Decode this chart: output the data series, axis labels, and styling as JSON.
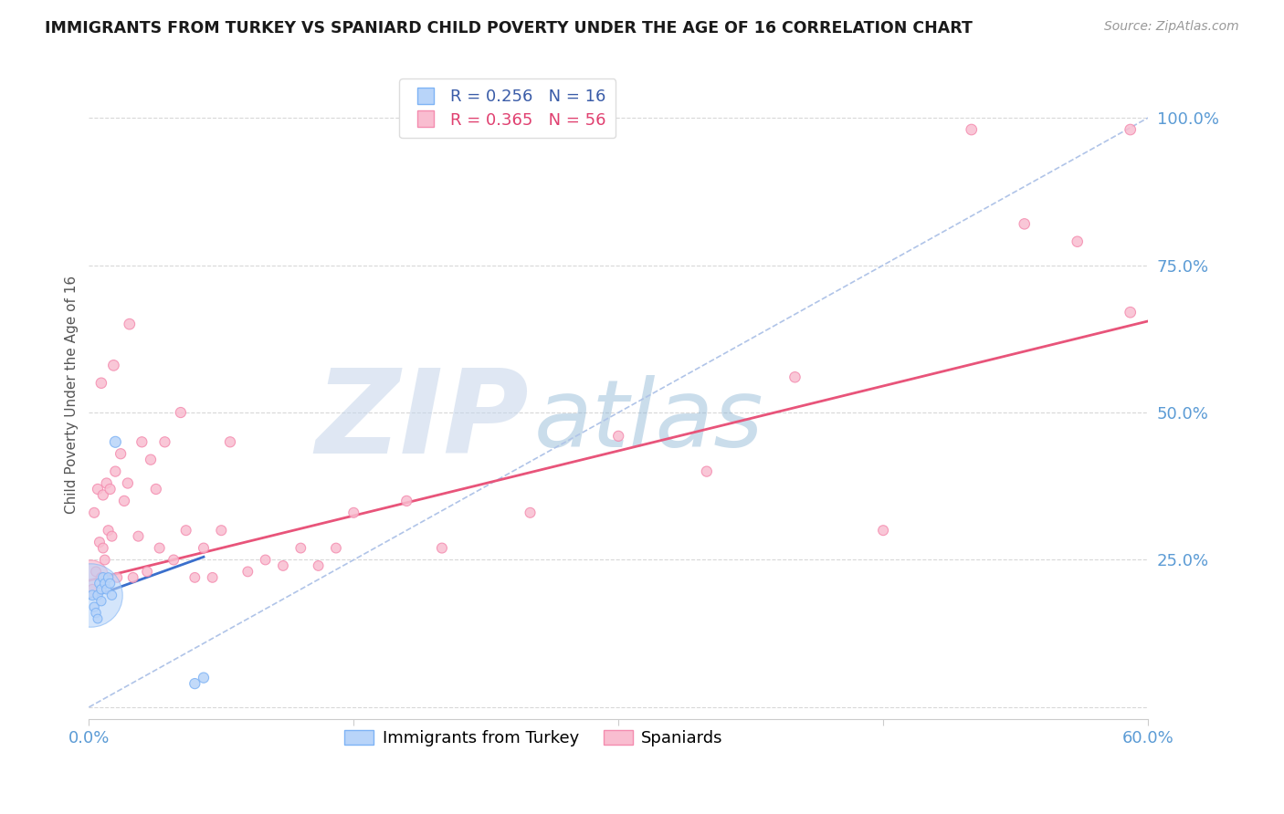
{
  "title": "IMMIGRANTS FROM TURKEY VS SPANIARD CHILD POVERTY UNDER THE AGE OF 16 CORRELATION CHART",
  "source": "Source: ZipAtlas.com",
  "ylabel": "Child Poverty Under the Age of 16",
  "y_ticks": [
    0.0,
    0.25,
    0.5,
    0.75,
    1.0
  ],
  "y_tick_labels_right": [
    "",
    "25.0%",
    "50.0%",
    "75.0%",
    "100.0%"
  ],
  "xlim": [
    0.0,
    0.6
  ],
  "ylim": [
    -0.02,
    1.08
  ],
  "turkey_color": "#7eb3f5",
  "turkey_color_fill": "#b8d4f9",
  "spaniard_color": "#f48caf",
  "spaniard_color_fill": "#f9bdd0",
  "legend_R_turkey": "0.256",
  "legend_N_turkey": "16",
  "legend_R_spaniard": "0.365",
  "legend_N_spaniard": "56",
  "background_color": "#ffffff",
  "grid_color": "#d8d8d8",
  "diag_color": "#b0c4e8",
  "pink_line_color": "#e8547a",
  "blue_line_color": "#3a6fcc",
  "turkey_points_x": [
    0.002,
    0.003,
    0.004,
    0.005,
    0.005,
    0.006,
    0.007,
    0.007,
    0.008,
    0.009,
    0.01,
    0.011,
    0.012,
    0.013,
    0.015,
    0.06,
    0.065
  ],
  "turkey_points_y": [
    0.19,
    0.17,
    0.16,
    0.15,
    0.19,
    0.21,
    0.2,
    0.18,
    0.22,
    0.21,
    0.2,
    0.22,
    0.21,
    0.19,
    0.45,
    0.04,
    0.05
  ],
  "turkey_sizes": [
    60,
    55,
    55,
    50,
    55,
    58,
    55,
    55,
    58,
    55,
    55,
    55,
    55,
    55,
    75,
    65,
    65
  ],
  "turkey_big_x": [
    0.001
  ],
  "turkey_big_y": [
    0.19
  ],
  "turkey_big_size": [
    2500
  ],
  "spaniard_points_x": [
    0.002,
    0.003,
    0.004,
    0.005,
    0.006,
    0.007,
    0.007,
    0.008,
    0.008,
    0.009,
    0.01,
    0.011,
    0.012,
    0.013,
    0.014,
    0.015,
    0.016,
    0.018,
    0.02,
    0.022,
    0.023,
    0.025,
    0.028,
    0.03,
    0.033,
    0.035,
    0.038,
    0.04,
    0.043,
    0.048,
    0.052,
    0.055,
    0.06,
    0.065,
    0.07,
    0.075,
    0.08,
    0.09,
    0.1,
    0.11,
    0.12,
    0.13,
    0.14,
    0.15,
    0.18,
    0.2,
    0.25,
    0.3,
    0.35,
    0.4,
    0.45,
    0.5,
    0.53,
    0.56,
    0.59,
    0.59
  ],
  "spaniard_points_y": [
    0.2,
    0.33,
    0.23,
    0.37,
    0.28,
    0.22,
    0.55,
    0.27,
    0.36,
    0.25,
    0.38,
    0.3,
    0.37,
    0.29,
    0.58,
    0.4,
    0.22,
    0.43,
    0.35,
    0.38,
    0.65,
    0.22,
    0.29,
    0.45,
    0.23,
    0.42,
    0.37,
    0.27,
    0.45,
    0.25,
    0.5,
    0.3,
    0.22,
    0.27,
    0.22,
    0.3,
    0.45,
    0.23,
    0.25,
    0.24,
    0.27,
    0.24,
    0.27,
    0.33,
    0.35,
    0.27,
    0.33,
    0.46,
    0.4,
    0.56,
    0.3,
    0.98,
    0.82,
    0.79,
    0.67,
    0.98
  ],
  "spaniard_sizes": [
    60,
    62,
    60,
    65,
    62,
    60,
    68,
    60,
    65,
    60,
    65,
    62,
    65,
    62,
    70,
    65,
    60,
    65,
    65,
    65,
    70,
    60,
    62,
    65,
    60,
    65,
    65,
    62,
    65,
    62,
    65,
    62,
    60,
    62,
    60,
    62,
    65,
    60,
    60,
    60,
    60,
    60,
    60,
    62,
    65,
    62,
    62,
    65,
    65,
    68,
    62,
    70,
    68,
    68,
    70,
    70
  ],
  "spaniard_big_x": [
    0.001
  ],
  "spaniard_big_y": [
    0.22
  ],
  "spaniard_big_size": [
    800
  ],
  "pink_line_x": [
    0.0,
    0.6
  ],
  "pink_line_y": [
    0.215,
    0.655
  ],
  "blue_line_x": [
    0.0,
    0.065
  ],
  "blue_line_y": [
    0.185,
    0.255
  ],
  "diag_line_x": [
    0.0,
    0.6
  ],
  "diag_line_y": [
    0.0,
    1.0
  ]
}
